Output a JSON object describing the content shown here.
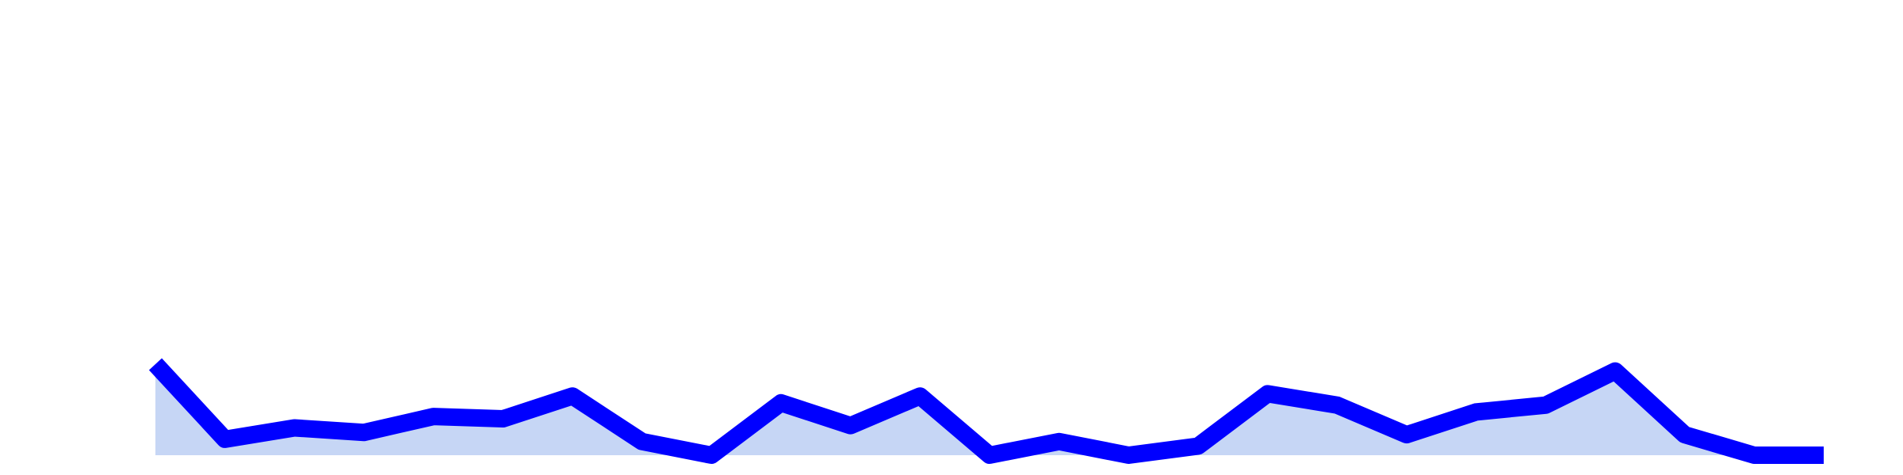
{
  "chart_data": {
    "type": "area",
    "title": "",
    "xlabel": "",
    "ylabel": "",
    "grid": false,
    "legend": "none",
    "x": [
      1,
      2,
      3,
      4,
      5,
      6,
      7,
      8,
      9,
      10,
      11,
      12,
      13,
      14,
      15,
      16,
      17,
      18,
      19,
      20,
      21,
      22,
      23,
      24,
      25
    ],
    "ylim": [
      0,
      1
    ],
    "series": [
      {
        "values": [
          0.2,
          0.035,
          0.06,
          0.05,
          0.085,
          0.08,
          0.13,
          0.03,
          0.0,
          0.115,
          0.065,
          0.13,
          0.0,
          0.03,
          0.0,
          0.02,
          0.135,
          0.11,
          0.045,
          0.095,
          0.11,
          0.185,
          0.045,
          0.0,
          0.0
        ],
        "line_color": "#0000ff",
        "fill_color": "#c6d6f5"
      }
    ]
  }
}
